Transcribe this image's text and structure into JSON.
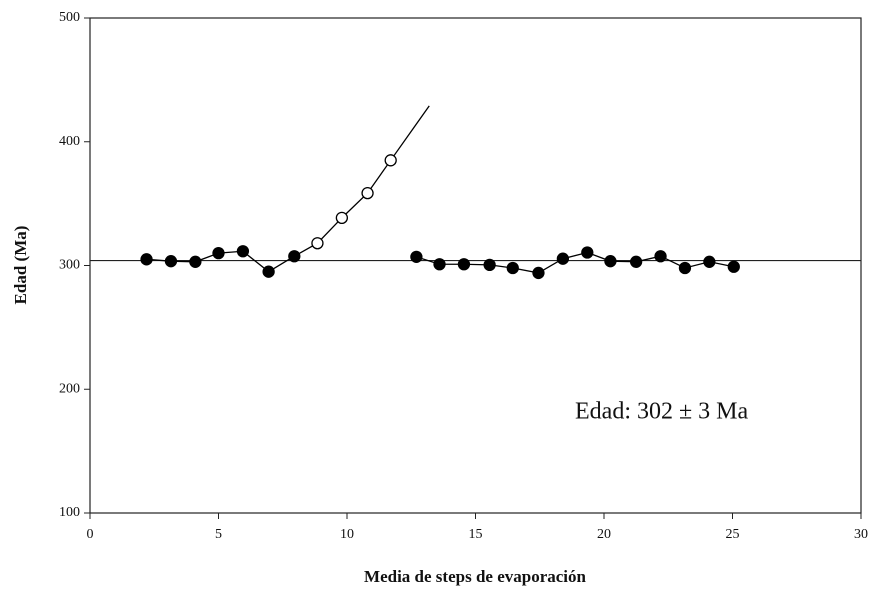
{
  "chart_data": {
    "type": "scatter",
    "x_label": "Media de steps de evaporación",
    "y_label": "Edad (Ma)",
    "annotation": "Edad:  302 ± 3 Ma",
    "xlim": [
      0,
      30
    ],
    "xticks": [
      0,
      5,
      10,
      15,
      20,
      25,
      30
    ],
    "ylim": [
      100,
      500
    ],
    "yticks": [
      100,
      200,
      300,
      400,
      500
    ],
    "reference_line": 304,
    "color": "#000000",
    "series": [
      {
        "marker": "filled",
        "line": true,
        "x": [
          2.2,
          3.15,
          4.1,
          5.0,
          5.95,
          6.95,
          7.95
        ],
        "values": [
          305,
          303.5,
          303,
          310,
          311.5,
          295,
          307.5
        ]
      },
      {
        "marker": "filled",
        "line": true,
        "x": [
          12.7,
          13.6,
          14.55,
          15.55,
          16.45,
          17.45,
          18.4,
          19.35,
          20.25,
          21.25,
          22.2,
          23.15,
          24.1,
          25.05
        ],
        "values": [
          307,
          301,
          301,
          300.5,
          298,
          294,
          305.5,
          310.5,
          303.5,
          303,
          307.5,
          298,
          303,
          299
        ]
      },
      {
        "marker": "none",
        "line": true,
        "x": [
          7.95,
          8.85,
          9.8,
          10.8,
          11.7,
          13.2
        ],
        "values": [
          307.5,
          318,
          338.5,
          358.5,
          385,
          429
        ]
      },
      {
        "marker": "open",
        "line": false,
        "x": [
          8.85,
          9.8,
          10.8,
          11.7
        ],
        "values": [
          318,
          338.5,
          358.5,
          385
        ]
      }
    ]
  }
}
